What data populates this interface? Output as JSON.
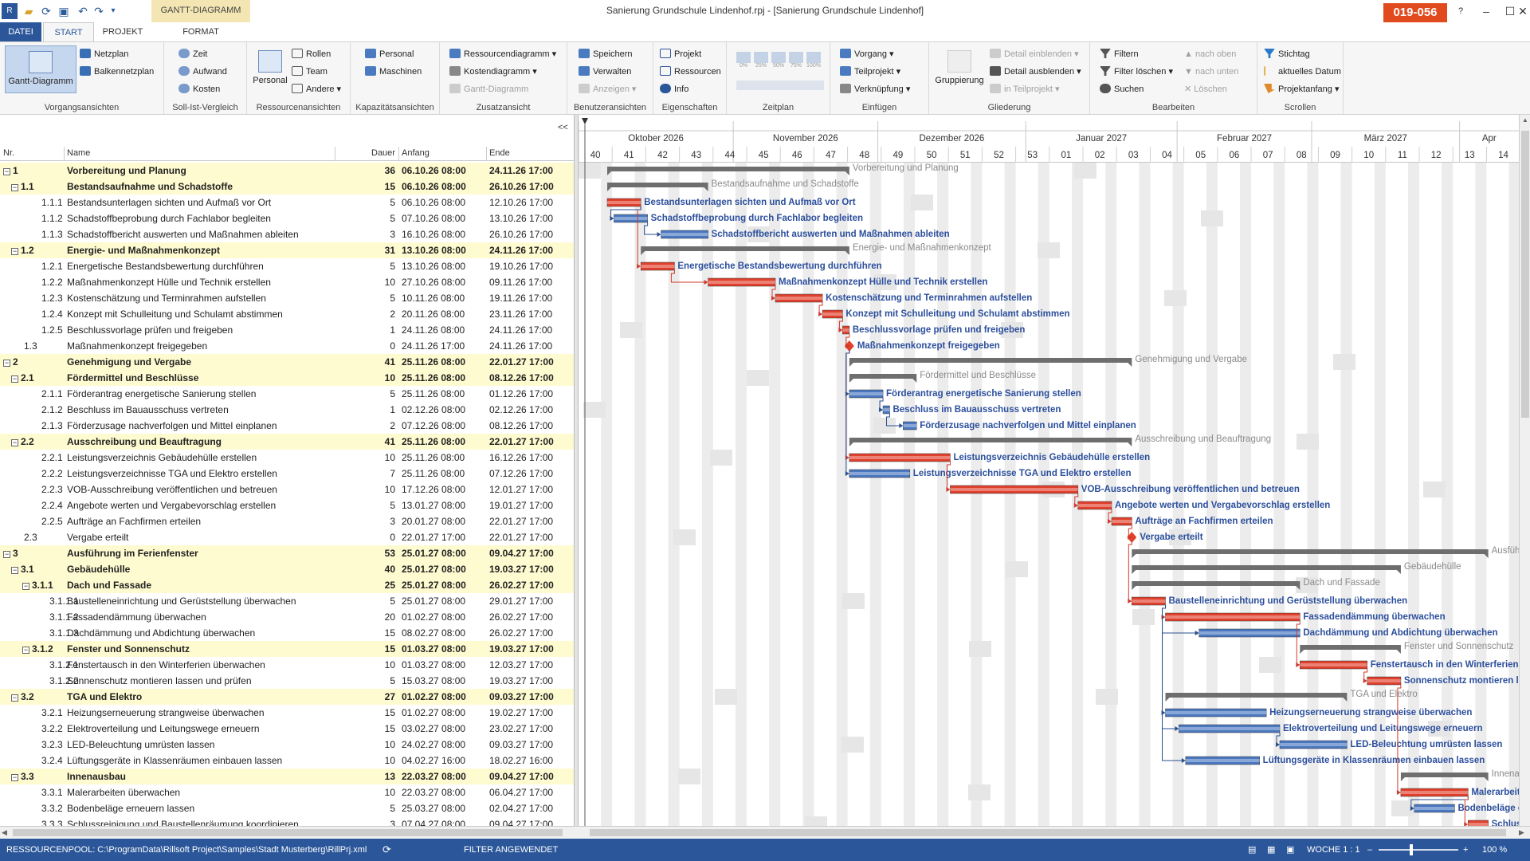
{
  "window": {
    "title": "Sanierung Grundschule Lindenhof.rpj - [Sanierung Grundschule Lindenhof]",
    "badge": "019-056",
    "context_tab_label": "GANTT-DIAGRAMM"
  },
  "tabs": [
    {
      "label": "DATEI"
    },
    {
      "label": "START"
    },
    {
      "label": "PROJEKT"
    },
    {
      "label": "FORMAT"
    }
  ],
  "ribbon": {
    "vorgangsansichten": {
      "label": "Vorgangsansichten",
      "gantt": "Gantt-Diagramm",
      "netzplan": "Netzplan",
      "balkennetzplan": "Balkennetzplan"
    },
    "sollist": {
      "label": "Soll-Ist-Vergleich",
      "zeit": "Zeit",
      "aufwand": "Aufwand",
      "kosten": "Kosten"
    },
    "ressourcenansichten": {
      "label": "Ressourcenansichten",
      "personal": "Personal",
      "rollen": "Rollen",
      "team": "Team",
      "andere": "Andere"
    },
    "kapazitaet": {
      "label": "Kapazitätsansichten",
      "personal": "Personal",
      "maschinen": "Maschinen"
    },
    "zusatz": {
      "label": "Zusatzansicht",
      "ressourcendiagramm": "Ressourcendiagramm",
      "kostendiagramm": "Kostendiagramm",
      "gantt": "Gantt-Diagramm"
    },
    "benutzer": {
      "label": "Benutzeransichten",
      "speichern": "Speichern",
      "verwalten": "Verwalten",
      "anzeigen": "Anzeigen"
    },
    "eigenschaften": {
      "label": "Eigenschaften",
      "projekt": "Projekt",
      "ressourcen": "Ressourcen",
      "info": "Info"
    },
    "zeitplan": {
      "label": "Zeitplan",
      "pcts": [
        "0%",
        "25%",
        "50%",
        "75%",
        "100%"
      ]
    },
    "einfuegen": {
      "label": "Einfügen",
      "vorgang": "Vorgang",
      "teilprojekt": "Teilprojekt",
      "verknuepfung": "Verknüpfung"
    },
    "gliederung": {
      "label": "Gliederung",
      "gruppierung": "Gruppierung",
      "detail_ein": "Detail einblenden",
      "detail_aus": "Detail ausblenden",
      "in_teilprojekt": "in Teilprojekt"
    },
    "bearbeiten": {
      "label": "Bearbeiten",
      "filtern": "Filtern",
      "filter_loeschen": "Filter löschen",
      "suchen": "Suchen",
      "nach_oben": "nach oben",
      "nach_unten": "nach unten",
      "loeschen": "Löschen"
    },
    "scrollen": {
      "label": "Scrollen",
      "stichtag": "Stichtag",
      "aktuelles_datum": "aktuelles Datum",
      "projektanfang": "Projektanfang"
    }
  },
  "table": {
    "collapse": "<<",
    "headers": {
      "nr": "Nr.",
      "name": "Name",
      "dauer": "Dauer",
      "anfang": "Anfang",
      "ende": "Ende"
    },
    "rows": [
      {
        "nr": "1",
        "name": "Vorbereitung und Planung",
        "dur": "36",
        "start": "06.10.26 08:00",
        "end": "24.11.26 17:00",
        "level": 0,
        "summary": true,
        "s": 0,
        "e": 36
      },
      {
        "nr": "1.1",
        "name": "Bestandsaufnahme und Schadstoffe",
        "dur": "15",
        "start": "06.10.26 08:00",
        "end": "26.10.26 17:00",
        "level": 1,
        "summary": true,
        "s": 0,
        "e": 15
      },
      {
        "nr": "1.1.1",
        "name": "Bestandsunterlagen sichten und Aufmaß vor Ort",
        "dur": "5",
        "start": "06.10.26 08:00",
        "end": "12.10.26 17:00",
        "level": 2,
        "type": "crit",
        "s": 0,
        "e": 5
      },
      {
        "nr": "1.1.2",
        "name": "Schadstoffbeprobung durch Fachlabor begleiten",
        "dur": "5",
        "start": "07.10.26 08:00",
        "end": "13.10.26 17:00",
        "level": 2,
        "type": "norm",
        "s": 1,
        "e": 6
      },
      {
        "nr": "1.1.3",
        "name": "Schadstoffbericht auswerten und Maßnahmen ableiten",
        "dur": "3",
        "start": "16.10.26 08:00",
        "end": "26.10.26 17:00",
        "level": 2,
        "type": "norm",
        "s": 8,
        "e": 15
      },
      {
        "nr": "1.2",
        "name": "Energie- und Maßnahmenkonzept",
        "dur": "31",
        "start": "13.10.26 08:00",
        "end": "24.11.26 17:00",
        "level": 1,
        "summary": true,
        "s": 5,
        "e": 36
      },
      {
        "nr": "1.2.1",
        "name": "Energetische Bestandsbewertung durchführen",
        "dur": "5",
        "start": "13.10.26 08:00",
        "end": "19.10.26 17:00",
        "level": 2,
        "type": "crit",
        "s": 5,
        "e": 10
      },
      {
        "nr": "1.2.2",
        "name": "Maßnahmenkonzept Hülle und Technik erstellen",
        "dur": "10",
        "start": "27.10.26 08:00",
        "end": "09.11.26 17:00",
        "level": 2,
        "type": "crit",
        "s": 15,
        "e": 25
      },
      {
        "nr": "1.2.3",
        "name": "Kostenschätzung und Terminrahmen aufstellen",
        "dur": "5",
        "start": "10.11.26 08:00",
        "end": "19.11.26 17:00",
        "level": 2,
        "type": "crit",
        "s": 25,
        "e": 32
      },
      {
        "nr": "1.2.4",
        "name": "Konzept mit Schulleitung und Schulamt abstimmen",
        "dur": "2",
        "start": "20.11.26 08:00",
        "end": "23.11.26 17:00",
        "level": 2,
        "type": "crit",
        "s": 32,
        "e": 35
      },
      {
        "nr": "1.2.5",
        "name": "Beschlussvorlage prüfen und freigeben",
        "dur": "1",
        "start": "24.11.26 08:00",
        "end": "24.11.26 17:00",
        "level": 2,
        "type": "crit",
        "s": 35,
        "e": 36
      },
      {
        "nr": "1.3",
        "name": "Maßnahmenkonzept freigegeben",
        "dur": "0",
        "start": "24.11.26 17:00",
        "end": "24.11.26 17:00",
        "level": 1,
        "type": "mile",
        "s": 36,
        "e": 36
      },
      {
        "nr": "2",
        "name": "Genehmigung und Vergabe",
        "dur": "41",
        "start": "25.11.26 08:00",
        "end": "22.01.27 17:00",
        "level": 0,
        "summary": true,
        "s": 36,
        "e": 78
      },
      {
        "nr": "2.1",
        "name": "Fördermittel und Beschlüsse",
        "dur": "10",
        "start": "25.11.26 08:00",
        "end": "08.12.26 17:00",
        "level": 1,
        "summary": true,
        "s": 36,
        "e": 46
      },
      {
        "nr": "2.1.1",
        "name": "Förderantrag energetische Sanierung stellen",
        "dur": "5",
        "start": "25.11.26 08:00",
        "end": "01.12.26 17:00",
        "level": 2,
        "type": "norm",
        "s": 36,
        "e": 41
      },
      {
        "nr": "2.1.2",
        "name": "Beschluss im Bauausschuss vertreten",
        "dur": "1",
        "start": "02.12.26 08:00",
        "end": "02.12.26 17:00",
        "level": 2,
        "type": "norm",
        "s": 41,
        "e": 42
      },
      {
        "nr": "2.1.3",
        "name": "Förderzusage nachverfolgen und Mittel einplanen",
        "dur": "2",
        "start": "07.12.26 08:00",
        "end": "08.12.26 17:00",
        "level": 2,
        "type": "norm",
        "s": 44,
        "e": 46
      },
      {
        "nr": "2.2",
        "name": "Ausschreibung und Beauftragung",
        "dur": "41",
        "start": "25.11.26 08:00",
        "end": "22.01.27 17:00",
        "level": 1,
        "summary": true,
        "s": 36,
        "e": 78
      },
      {
        "nr": "2.2.1",
        "name": "Leistungsverzeichnis Gebäudehülle erstellen",
        "dur": "10",
        "start": "25.11.26 08:00",
        "end": "16.12.26 17:00",
        "level": 2,
        "type": "crit",
        "s": 36,
        "e": 51
      },
      {
        "nr": "2.2.2",
        "name": "Leistungsverzeichnisse TGA und Elektro erstellen",
        "dur": "7",
        "start": "25.11.26 08:00",
        "end": "07.12.26 17:00",
        "level": 2,
        "type": "norm",
        "s": 36,
        "e": 45
      },
      {
        "nr": "2.2.3",
        "name": "VOB-Ausschreibung veröffentlichen und betreuen",
        "dur": "10",
        "start": "17.12.26 08:00",
        "end": "12.01.27 17:00",
        "level": 2,
        "type": "crit",
        "s": 51,
        "e": 70
      },
      {
        "nr": "2.2.4",
        "name": "Angebote werten und Vergabevorschlag erstellen",
        "dur": "5",
        "start": "13.01.27 08:00",
        "end": "19.01.27 17:00",
        "level": 2,
        "type": "crit",
        "s": 70,
        "e": 75
      },
      {
        "nr": "2.2.5",
        "name": "Aufträge an Fachfirmen erteilen",
        "dur": "3",
        "start": "20.01.27 08:00",
        "end": "22.01.27 17:00",
        "level": 2,
        "type": "crit",
        "s": 75,
        "e": 78
      },
      {
        "nr": "2.3",
        "name": "Vergabe erteilt",
        "dur": "0",
        "start": "22.01.27 17:00",
        "end": "22.01.27 17:00",
        "level": 1,
        "type": "mile",
        "s": 78,
        "e": 78
      },
      {
        "nr": "3",
        "name": "Ausführung im Ferienfenster",
        "dur": "53",
        "start": "25.01.27 08:00",
        "end": "09.04.27 17:00",
        "level": 0,
        "summary": true,
        "s": 78,
        "e": 131
      },
      {
        "nr": "3.1",
        "name": "Gebäudehülle",
        "dur": "40",
        "start": "25.01.27 08:00",
        "end": "19.03.27 17:00",
        "level": 1,
        "summary": true,
        "s": 78,
        "e": 118
      },
      {
        "nr": "3.1.1",
        "name": "Dach und Fassade",
        "dur": "25",
        "start": "25.01.27 08:00",
        "end": "26.02.27 17:00",
        "level": 2,
        "summary": true,
        "s": 78,
        "e": 103
      },
      {
        "nr": "3.1.1.1",
        "name": "Baustelleneinrichtung und Gerüststellung überwachen",
        "dur": "5",
        "start": "25.01.27 08:00",
        "end": "29.01.27 17:00",
        "level": 3,
        "type": "crit",
        "s": 78,
        "e": 83
      },
      {
        "nr": "3.1.1.2",
        "name": "Fassadendämmung überwachen",
        "dur": "20",
        "start": "01.02.27 08:00",
        "end": "26.02.27 17:00",
        "level": 3,
        "type": "crit",
        "s": 83,
        "e": 103
      },
      {
        "nr": "3.1.1.3",
        "name": "Dachdämmung und Abdichtung überwachen",
        "dur": "15",
        "start": "08.02.27 08:00",
        "end": "26.02.27 17:00",
        "level": 3,
        "type": "norm",
        "s": 88,
        "e": 103
      },
      {
        "nr": "3.1.2",
        "name": "Fenster und Sonnenschutz",
        "dur": "15",
        "start": "01.03.27 08:00",
        "end": "19.03.27 17:00",
        "level": 2,
        "summary": true,
        "s": 103,
        "e": 118
      },
      {
        "nr": "3.1.2.1",
        "name": "Fenstertausch in den Winterferien überwachen",
        "dur": "10",
        "start": "01.03.27 08:00",
        "end": "12.03.27 17:00",
        "level": 3,
        "type": "crit",
        "s": 103,
        "e": 113
      },
      {
        "nr": "3.1.2.2",
        "name": "Sonnenschutz montieren lassen und prüfen",
        "dur": "5",
        "start": "15.03.27 08:00",
        "end": "19.03.27 17:00",
        "level": 3,
        "type": "crit",
        "s": 113,
        "e": 118
      },
      {
        "nr": "3.2",
        "name": "TGA und Elektro",
        "dur": "27",
        "start": "01.02.27 08:00",
        "end": "09.03.27 17:00",
        "level": 1,
        "summary": true,
        "s": 83,
        "e": 110
      },
      {
        "nr": "3.2.1",
        "name": "Heizungserneuerung strangweise überwachen",
        "dur": "15",
        "start": "01.02.27 08:00",
        "end": "19.02.27 17:00",
        "level": 2,
        "type": "norm",
        "s": 83,
        "e": 98
      },
      {
        "nr": "3.2.2",
        "name": "Elektroverteilung und Leitungswege erneuern",
        "dur": "15",
        "start": "03.02.27 08:00",
        "end": "23.02.27 17:00",
        "level": 2,
        "type": "norm",
        "s": 85,
        "e": 100
      },
      {
        "nr": "3.2.3",
        "name": "LED-Beleuchtung umrüsten lassen",
        "dur": "10",
        "start": "24.02.27 08:00",
        "end": "09.03.27 17:00",
        "level": 2,
        "type": "norm",
        "s": 100,
        "e": 110
      },
      {
        "nr": "3.2.4",
        "name": "Lüftungsgeräte in Klassenräumen einbauen lassen",
        "dur": "10",
        "start": "04.02.27 16:00",
        "end": "18.02.27 16:00",
        "level": 2,
        "type": "norm",
        "s": 86,
        "e": 97
      },
      {
        "nr": "3.3",
        "name": "Innenausbau",
        "dur": "13",
        "start": "22.03.27 08:00",
        "end": "09.04.27 17:00",
        "level": 1,
        "summary": true,
        "s": 118,
        "e": 131
      },
      {
        "nr": "3.3.1",
        "name": "Malerarbeiten überwachen",
        "dur": "10",
        "start": "22.03.27 08:00",
        "end": "06.04.27 17:00",
        "level": 2,
        "type": "crit",
        "s": 118,
        "e": 128
      },
      {
        "nr": "3.3.2",
        "name": "Bodenbeläge erneuern lassen",
        "dur": "5",
        "start": "25.03.27 08:00",
        "end": "02.04.27 17:00",
        "level": 2,
        "type": "norm",
        "s": 120,
        "e": 126
      },
      {
        "nr": "3.3.3",
        "name": "Schlussreinigung und Baustellenräumung koordinieren",
        "dur": "3",
        "start": "07.04.27 08:00",
        "end": "09.04.27 17:00",
        "level": 2,
        "type": "crit",
        "s": 128,
        "e": 131
      }
    ]
  },
  "timescale": {
    "months": [
      "Oktober 2026",
      "November 2026",
      "Dezember 2026",
      "Januar 2027",
      "Februar 2027",
      "März 2027",
      "Apr"
    ],
    "weeks": [
      "40",
      "41",
      "42",
      "43",
      "44",
      "45",
      "46",
      "47",
      "48",
      "49",
      "50",
      "51",
      "52",
      "53",
      "01",
      "02",
      "03",
      "04",
      "05",
      "06",
      "07",
      "08",
      "09",
      "10",
      "11",
      "12",
      "13",
      "14"
    ]
  },
  "colors": {
    "critical": "#e0402c",
    "normal": "#4a78c0",
    "summary": "#6e6e6e",
    "label": "#2c4f9c",
    "summary_label": "#8a8a8a",
    "link_crit": "#d03a2a",
    "link_norm": "#2a4f8f"
  },
  "status": {
    "pool": "RESSOURCENPOOL: C:\\ProgramData\\Rillsoft Project\\Samples\\Stadt Musterberg\\RillPrj.xml",
    "filter": "FILTER ANGEWENDET",
    "scale": "WOCHE 1 : 1",
    "zoom": "100 %"
  }
}
